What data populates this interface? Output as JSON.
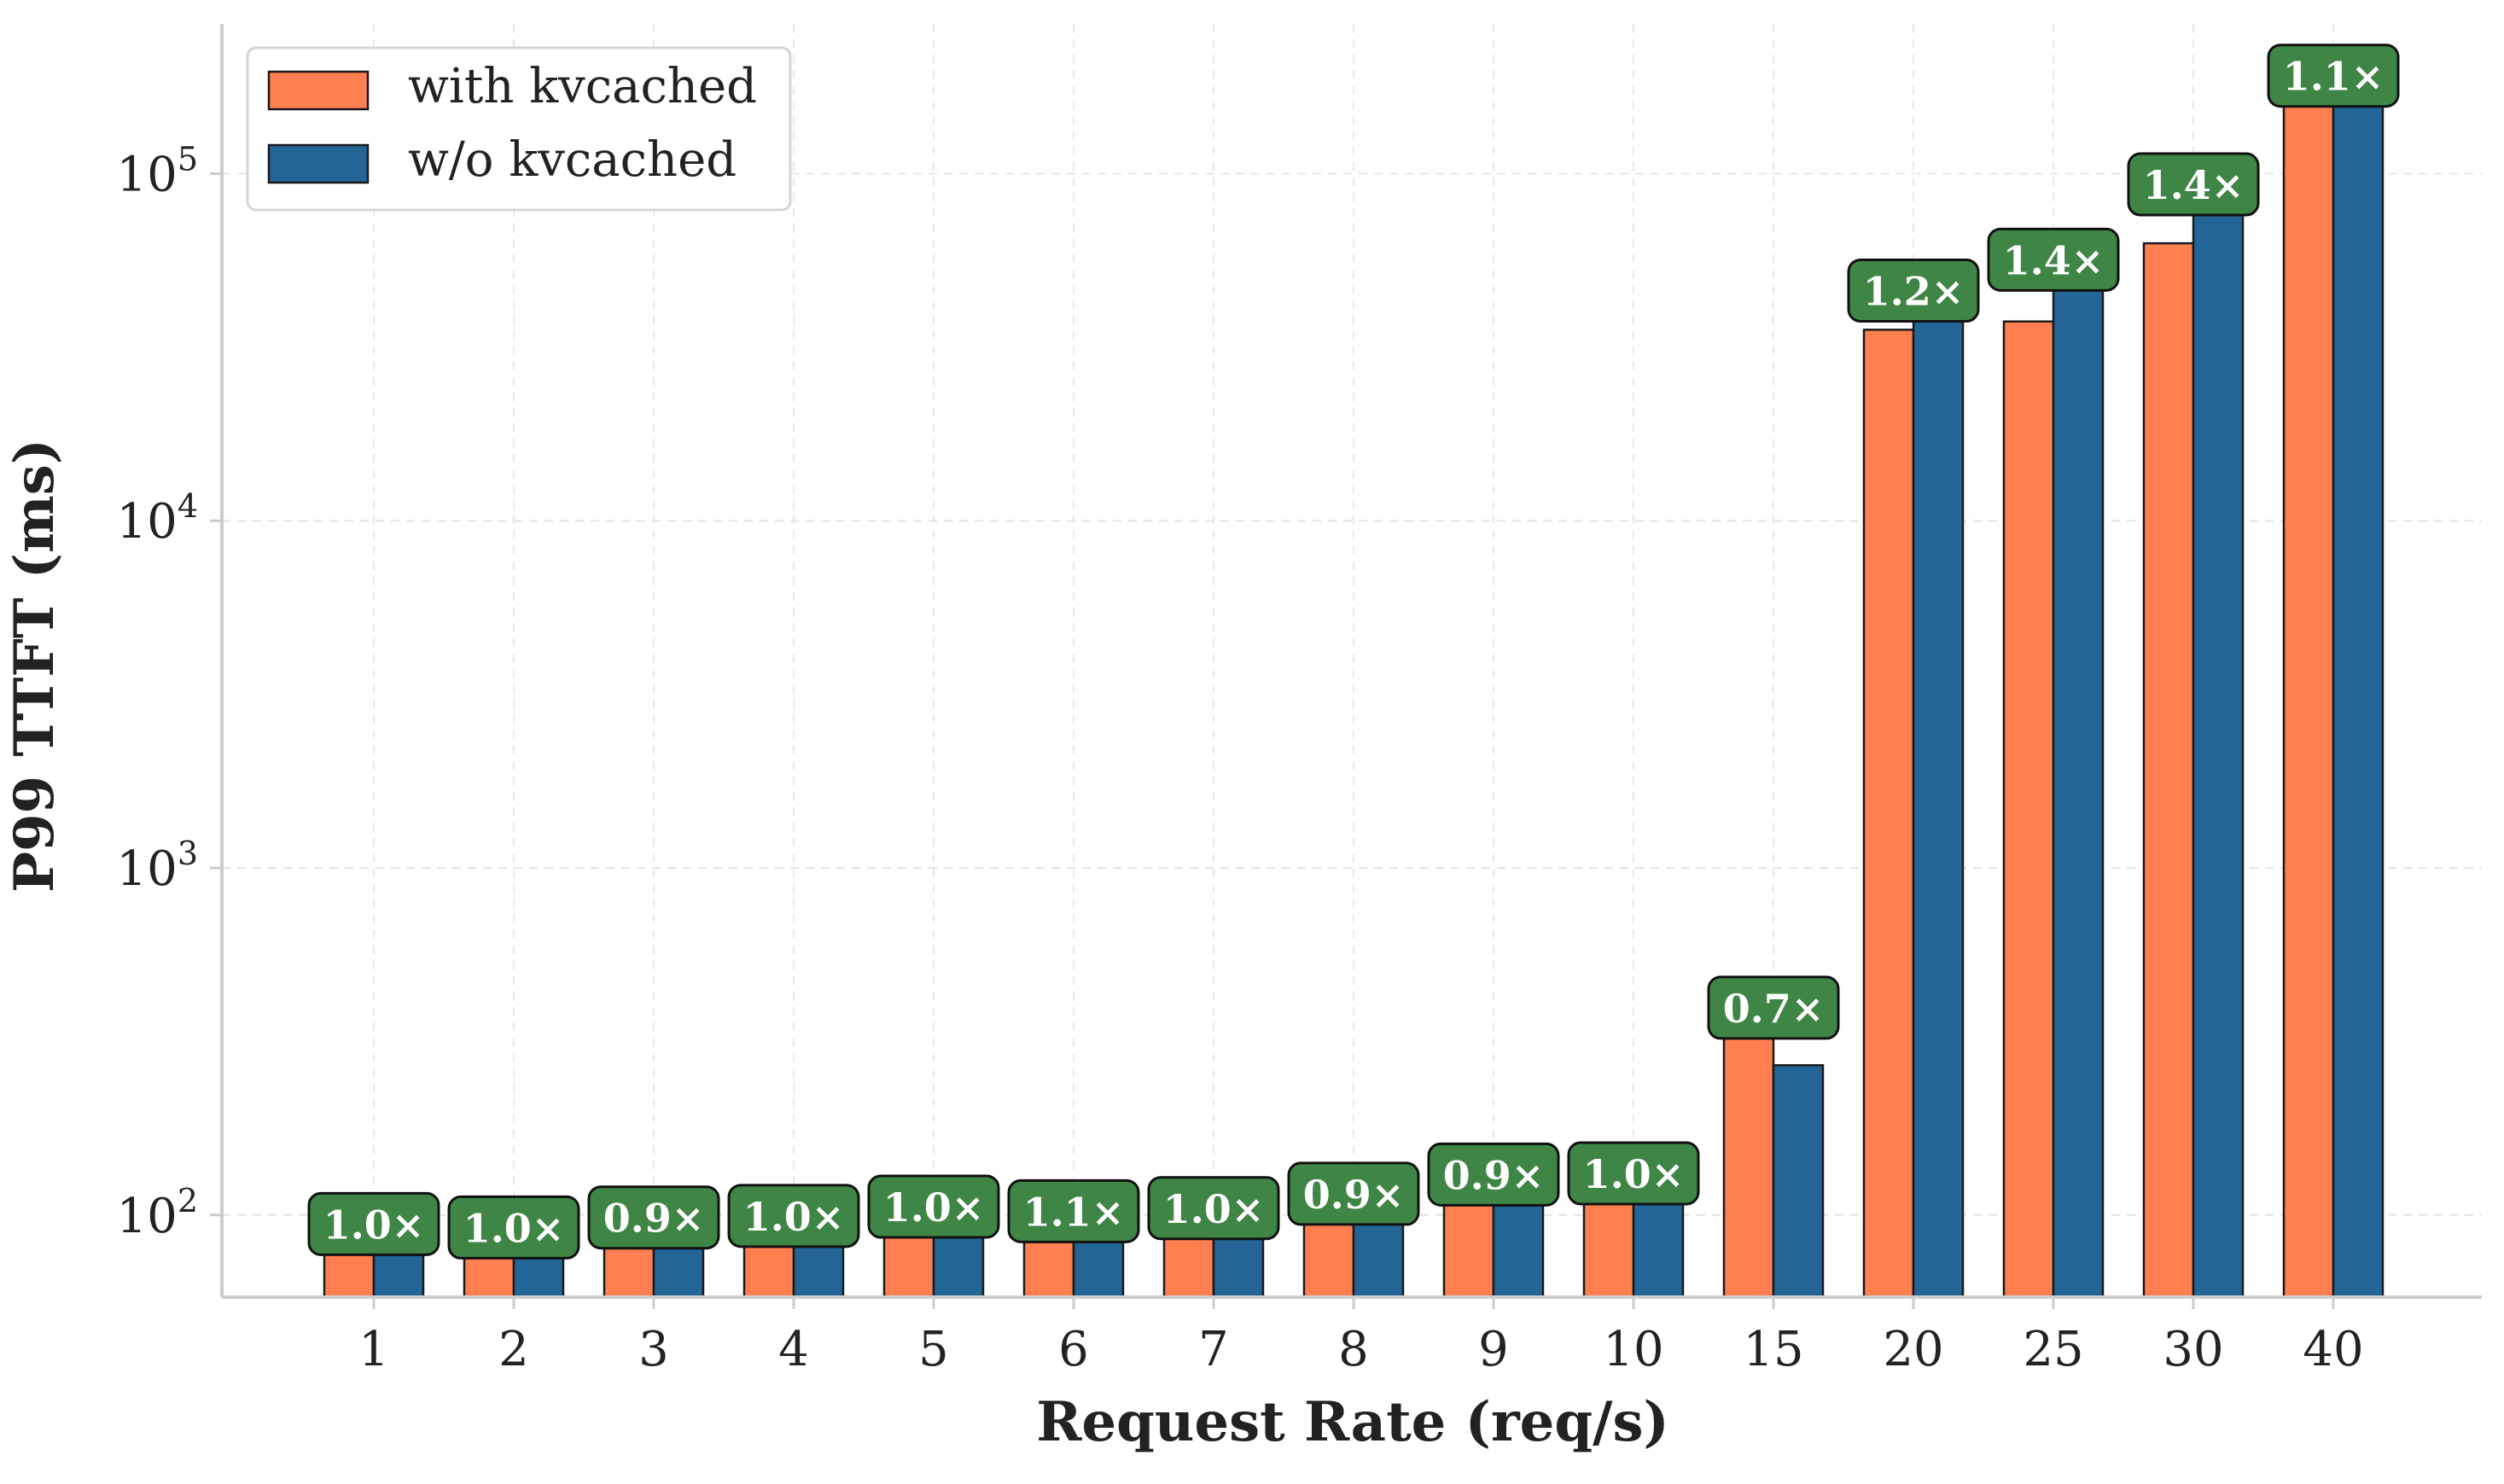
{
  "chart_data": {
    "type": "bar",
    "title": "",
    "xlabel": "Request Rate (req/s)",
    "ylabel": "P99 TTFT (ms)",
    "yscale": "log",
    "ylim": [
      58,
      270000
    ],
    "yticks": [
      {
        "value": 100,
        "base": "10",
        "exp": "2"
      },
      {
        "value": 1000,
        "base": "10",
        "exp": "3"
      },
      {
        "value": 10000,
        "base": "10",
        "exp": "4"
      },
      {
        "value": 100000,
        "base": "10",
        "exp": "5"
      }
    ],
    "grid": true,
    "legend_position": "top-left",
    "categories": [
      "1",
      "2",
      "3",
      "4",
      "5",
      "6",
      "7",
      "8",
      "9",
      "10",
      "15",
      "20",
      "25",
      "30",
      "40"
    ],
    "series": [
      {
        "name": "with kvcached",
        "color": "#FF7F50",
        "values": [
          86,
          88,
          94,
          89,
          99,
          90,
          100,
          110,
          125,
          126,
          378,
          35500,
          37500,
          63000,
          165000
        ]
      },
      {
        "name": "w/o kvcached",
        "color": "#236596",
        "values": [
          90,
          87,
          86,
          95,
          101,
          98,
          97,
          99,
          113,
          120,
          270,
          44000,
          54000,
          89000,
          183000
        ]
      }
    ],
    "annotations": [
      "1.0×",
      "1.0×",
      "0.9×",
      "1.0×",
      "1.0×",
      "1.1×",
      "1.0×",
      "0.9×",
      "0.9×",
      "1.0×",
      "0.7×",
      "1.2×",
      "1.4×",
      "1.4×",
      "1.1×"
    ],
    "annotation_color": "#3F8545"
  }
}
